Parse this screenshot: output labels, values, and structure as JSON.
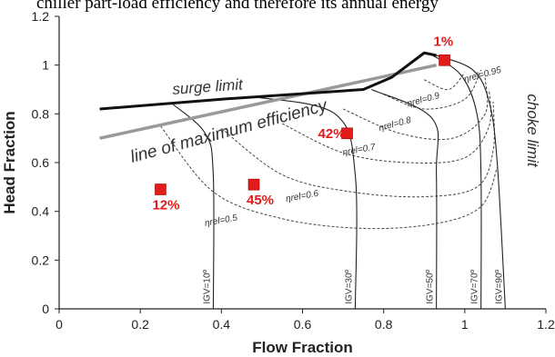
{
  "caption_fragment": "chiller part-load efficiency and therefore its annual energy",
  "chart_data": {
    "type": "line",
    "xlabel": "Flow Fraction",
    "ylabel": "Head Fraction",
    "xlim": [
      0,
      1.2
    ],
    "ylim": [
      0,
      1.2
    ],
    "xticks": [
      "0",
      "0.2",
      "0.4",
      "0.6",
      "0.8",
      "1",
      "1.2"
    ],
    "yticks": [
      "0",
      "0.2",
      "0.4",
      "0.6",
      "0.8",
      "1",
      "1.2"
    ],
    "grid": false,
    "curve_labels": {
      "surge": "surge limit",
      "max_eff": "line of maximum efficiency",
      "choke": "choke limit"
    },
    "surge_limit": [
      [
        0.1,
        0.82
      ],
      [
        0.4,
        0.86
      ],
      [
        0.75,
        0.9
      ],
      [
        0.82,
        0.95
      ],
      [
        0.9,
        1.05
      ],
      [
        0.93,
        1.04
      ]
    ],
    "max_efficiency_line": [
      [
        0.1,
        0.7
      ],
      [
        0.93,
        1.0
      ]
    ],
    "igv_curves": [
      {
        "label": "IGV=10º",
        "points": [
          [
            0.28,
            0.84
          ],
          [
            0.36,
            0.72
          ],
          [
            0.38,
            0.55
          ],
          [
            0.38,
            0
          ]
        ]
      },
      {
        "label": "IGV=30º",
        "points": [
          [
            0.48,
            0.87
          ],
          [
            0.68,
            0.8
          ],
          [
            0.73,
            0.55
          ],
          [
            0.73,
            0
          ]
        ]
      },
      {
        "label": "IGV=50º",
        "points": [
          [
            0.77,
            0.9
          ],
          [
            0.92,
            0.78
          ],
          [
            0.93,
            0.55
          ],
          [
            0.93,
            0
          ]
        ]
      },
      {
        "label": "IGV=70º",
        "points": [
          [
            0.91,
            1.05
          ],
          [
            0.99,
            0.96
          ],
          [
            1.03,
            0.8
          ],
          [
            1.04,
            0.55
          ],
          [
            1.04,
            0
          ]
        ]
      },
      {
        "label": "IGV=90º",
        "points": [
          [
            0.93,
            1.04
          ],
          [
            1.02,
            0.98
          ],
          [
            1.06,
            0.85
          ],
          [
            1.08,
            0.6
          ],
          [
            1.1,
            0
          ]
        ]
      }
    ],
    "efficiency_contours": [
      {
        "label": "ηrel=0.95",
        "points": [
          [
            0.9,
            0.94
          ],
          [
            0.96,
            0.9
          ],
          [
            1.0,
            0.97
          ]
        ]
      },
      {
        "label": "ηrel=0.9",
        "points": [
          [
            0.8,
            0.88
          ],
          [
            0.9,
            0.82
          ],
          [
            1.0,
            0.86
          ],
          [
            1.04,
            0.98
          ]
        ]
      },
      {
        "label": "ηrel=0.8",
        "points": [
          [
            0.7,
            0.82
          ],
          [
            0.84,
            0.72
          ],
          [
            0.97,
            0.7
          ],
          [
            1.05,
            0.8
          ],
          [
            1.05,
            0.95
          ]
        ]
      },
      {
        "label": "ηrel=0.7",
        "points": [
          [
            0.55,
            0.76
          ],
          [
            0.7,
            0.64
          ],
          [
            0.86,
            0.6
          ],
          [
            1.0,
            0.62
          ],
          [
            1.06,
            0.75
          ],
          [
            1.06,
            0.9
          ]
        ]
      },
      {
        "label": "ηrel=0.6",
        "points": [
          [
            0.4,
            0.74
          ],
          [
            0.55,
            0.55
          ],
          [
            0.72,
            0.48
          ],
          [
            0.9,
            0.46
          ],
          [
            1.03,
            0.5
          ],
          [
            1.07,
            0.65
          ],
          [
            1.07,
            0.85
          ]
        ]
      },
      {
        "label": "ηrel=0.5",
        "points": [
          [
            0.25,
            0.75
          ],
          [
            0.38,
            0.48
          ],
          [
            0.55,
            0.37
          ],
          [
            0.75,
            0.33
          ],
          [
            0.93,
            0.35
          ],
          [
            1.04,
            0.42
          ],
          [
            1.08,
            0.58
          ]
        ]
      }
    ],
    "points": [
      {
        "label": "1%",
        "x": 0.95,
        "y": 1.02
      },
      {
        "label": "42%",
        "x": 0.71,
        "y": 0.72
      },
      {
        "label": "45%",
        "x": 0.48,
        "y": 0.51
      },
      {
        "label": "12%",
        "x": 0.25,
        "y": 0.49
      }
    ],
    "colors": {
      "point": "#e21b1b",
      "max_eff": "#999999",
      "curves": "#222222",
      "surge": "#111111"
    }
  }
}
